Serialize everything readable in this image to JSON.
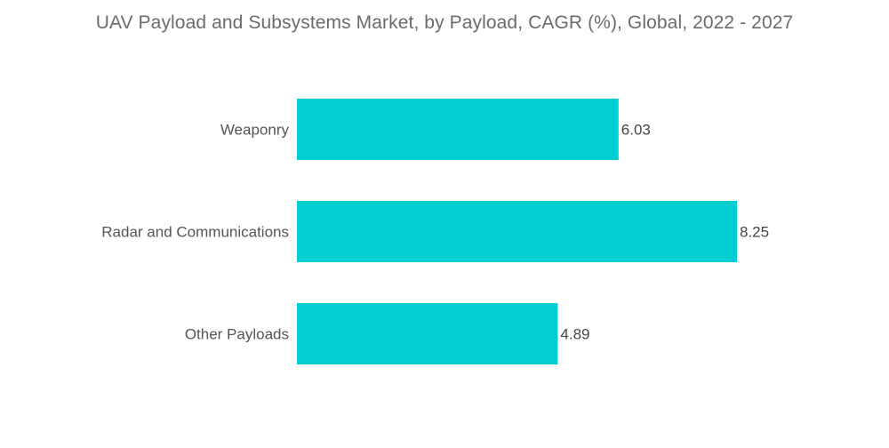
{
  "chart_data": {
    "type": "bar",
    "orientation": "horizontal",
    "title": "UAV Payload and Subsystems Market, by Payload, CAGR (%), Global, 2022 - 2027",
    "categories": [
      "Weaponry",
      "Radar and Communications",
      "Other Payloads"
    ],
    "values": [
      6.03,
      8.25,
      4.89
    ],
    "value_labels": [
      "6.03",
      "8.25",
      "4.89"
    ],
    "bar_color": "#00CED1",
    "xlim": [
      0,
      8.25
    ],
    "grid": false,
    "legend": "none"
  }
}
